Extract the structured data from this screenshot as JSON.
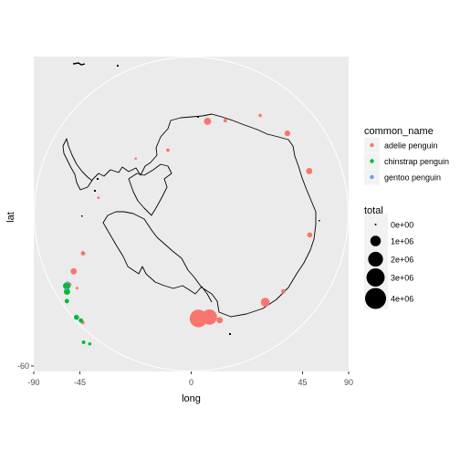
{
  "chart_data": {
    "type": "scatter",
    "subtype": "polar-map-bubble",
    "xlabel": "long",
    "ylabel": "lat",
    "x_ticks": [
      "-90",
      "-45",
      "0",
      "45",
      "90"
    ],
    "y_ticks": [
      "-60"
    ],
    "panel_background": "#ebebeb",
    "grid": true,
    "legend_placement": "right",
    "color_legend": {
      "title": "common_name",
      "entries": [
        {
          "label": "adelie penguin",
          "color": "#f8766d"
        },
        {
          "label": "chinstrap penguin",
          "color": "#00ba38"
        },
        {
          "label": "gentoo penguin",
          "color": "#619cff"
        }
      ]
    },
    "size_legend": {
      "title": "total",
      "entries": [
        {
          "label": "0e+00",
          "value": 0
        },
        {
          "label": "1e+06",
          "value": 1000000
        },
        {
          "label": "2e+06",
          "value": 2000000
        },
        {
          "label": "3e+06",
          "value": 3000000
        },
        {
          "label": "4e+06",
          "value": 4000000
        }
      ]
    },
    "points": [
      {
        "name": "adelie penguin",
        "long": 4,
        "lat": -70,
        "total": 2400000
      },
      {
        "name": "adelie penguin",
        "long": 10,
        "lat": -70,
        "total": 1800000
      },
      {
        "name": "adelie penguin",
        "long": 15,
        "lat": -69,
        "total": 300000
      },
      {
        "name": "adelie penguin",
        "long": 40,
        "lat": -68,
        "total": 600000
      },
      {
        "name": "adelie penguin",
        "long": 50,
        "lat": -67,
        "total": 150000
      },
      {
        "name": "adelie penguin",
        "long": 80,
        "lat": -67,
        "total": 200000
      },
      {
        "name": "adelie penguin",
        "long": 110,
        "lat": -66,
        "total": 300000
      },
      {
        "name": "adelie penguin",
        "long": 130,
        "lat": -66,
        "total": 250000
      },
      {
        "name": "adelie penguin",
        "long": 145,
        "lat": -67,
        "total": 80000
      },
      {
        "name": "adelie penguin",
        "long": 160,
        "lat": -71,
        "total": 100000
      },
      {
        "name": "adelie penguin",
        "long": 170,
        "lat": -72,
        "total": 400000
      },
      {
        "name": "adelie penguin",
        "long": -160,
        "lat": -77,
        "total": 90000
      },
      {
        "name": "adelie penguin",
        "long": -135,
        "lat": -75,
        "total": 40000
      },
      {
        "name": "adelie penguin",
        "long": -100,
        "lat": -72,
        "total": 50000
      },
      {
        "name": "adelie penguin",
        "long": -70,
        "lat": -68,
        "total": 150000
      },
      {
        "name": "adelie penguin",
        "long": -64,
        "lat": -65,
        "total": 300000
      },
      {
        "name": "adelie penguin",
        "long": -60,
        "lat": -63,
        "total": 200000
      },
      {
        "name": "adelie penguin",
        "long": -57,
        "lat": -64,
        "total": 50000
      },
      {
        "name": "adelie penguin",
        "long": -45,
        "lat": -60.7,
        "total": 100000
      },
      {
        "name": "chinstrap penguin",
        "long": -58,
        "lat": -62,
        "total": 300000
      },
      {
        "name": "chinstrap penguin",
        "long": -60,
        "lat": -62.5,
        "total": 400000
      },
      {
        "name": "chinstrap penguin",
        "long": -55,
        "lat": -61,
        "total": 150000
      },
      {
        "name": "chinstrap penguin",
        "long": -48,
        "lat": -60.5,
        "total": 200000
      },
      {
        "name": "chinstrap penguin",
        "long": -46,
        "lat": -60.7,
        "total": 150000
      },
      {
        "name": "chinstrap penguin",
        "long": -40,
        "lat": -58,
        "total": 100000
      },
      {
        "name": "chinstrap penguin",
        "long": -38,
        "lat": -58.5,
        "total": 80000
      },
      {
        "name": "gentoo penguin",
        "long": -61,
        "lat": -63,
        "total": 30000
      },
      {
        "name": "gentoo penguin",
        "long": -59,
        "lat": -62.2,
        "total": 20000
      }
    ]
  }
}
